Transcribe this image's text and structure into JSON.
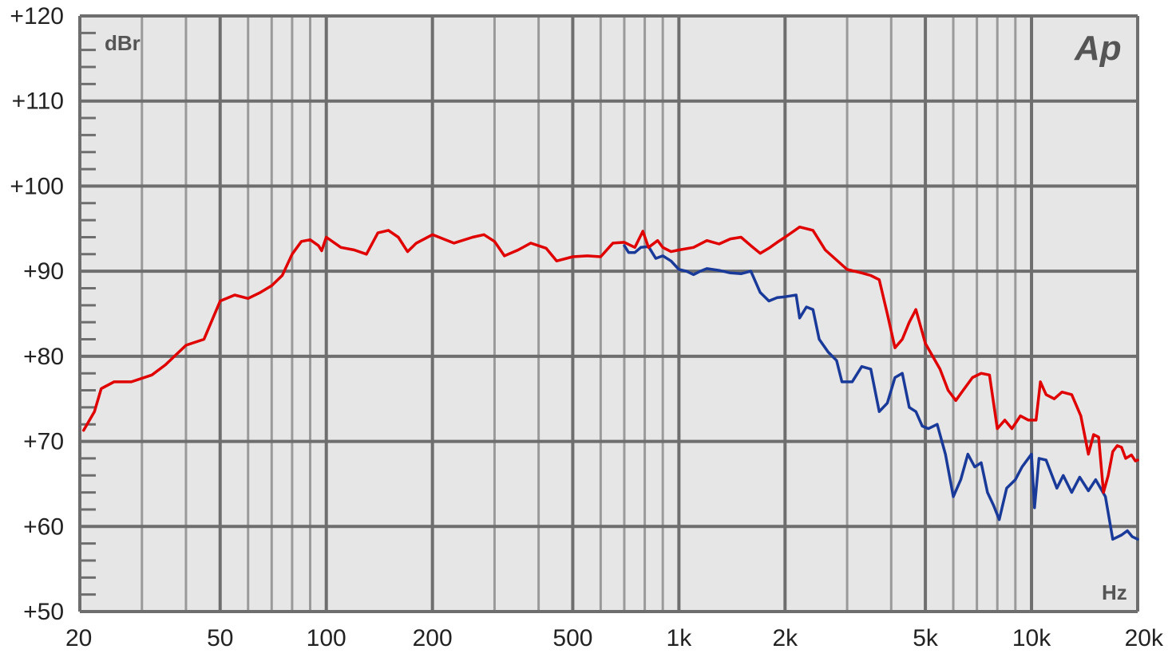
{
  "chart_data": {
    "type": "line",
    "x_scale": "log",
    "xlim": [
      20,
      20000
    ],
    "ylim": [
      50,
      120
    ],
    "grid": true,
    "ylabel": "dBr",
    "xlabel": "Hz",
    "logo_text": "Ap",
    "y_ticks": [
      {
        "value": 120,
        "label": "+120"
      },
      {
        "value": 110,
        "label": "+110"
      },
      {
        "value": 100,
        "label": "+100"
      },
      {
        "value": 90,
        "label": "+90"
      },
      {
        "value": 80,
        "label": "+80"
      },
      {
        "value": 70,
        "label": "+70"
      },
      {
        "value": 60,
        "label": "+60"
      },
      {
        "value": 50,
        "label": "+50"
      }
    ],
    "x_ticks": [
      {
        "value": 20,
        "label": "20"
      },
      {
        "value": 50,
        "label": "50"
      },
      {
        "value": 100,
        "label": "100"
      },
      {
        "value": 200,
        "label": "200"
      },
      {
        "value": 500,
        "label": "500"
      },
      {
        "value": 1000,
        "label": "1k"
      },
      {
        "value": 2000,
        "label": "2k"
      },
      {
        "value": 5000,
        "label": "5k"
      },
      {
        "value": 10000,
        "label": "10k"
      },
      {
        "value": 20000,
        "label": "20k"
      }
    ],
    "series": [
      {
        "color": "#e00000",
        "points": [
          [
            20.5,
            71.3
          ],
          [
            22,
            73.5
          ],
          [
            23,
            76.2
          ],
          [
            25,
            77.0
          ],
          [
            28,
            77.0
          ],
          [
            32,
            77.8
          ],
          [
            35,
            79.0
          ],
          [
            40,
            81.3
          ],
          [
            45,
            82.0
          ],
          [
            50,
            86.5
          ],
          [
            55,
            87.2
          ],
          [
            60,
            86.8
          ],
          [
            65,
            87.5
          ],
          [
            70,
            88.3
          ],
          [
            75,
            89.5
          ],
          [
            80,
            92.0
          ],
          [
            85,
            93.5
          ],
          [
            90,
            93.7
          ],
          [
            95,
            93.0
          ],
          [
            97,
            92.4
          ],
          [
            100,
            94.0
          ],
          [
            110,
            92.8
          ],
          [
            120,
            92.5
          ],
          [
            130,
            92.0
          ],
          [
            140,
            94.5
          ],
          [
            150,
            94.8
          ],
          [
            160,
            94.0
          ],
          [
            170,
            92.3
          ],
          [
            180,
            93.3
          ],
          [
            200,
            94.3
          ],
          [
            230,
            93.3
          ],
          [
            260,
            94.0
          ],
          [
            280,
            94.3
          ],
          [
            300,
            93.5
          ],
          [
            320,
            91.8
          ],
          [
            350,
            92.5
          ],
          [
            380,
            93.3
          ],
          [
            420,
            92.7
          ],
          [
            450,
            91.2
          ],
          [
            500,
            91.7
          ],
          [
            550,
            91.8
          ],
          [
            600,
            91.7
          ],
          [
            650,
            93.3
          ],
          [
            700,
            93.4
          ],
          [
            750,
            92.8
          ],
          [
            790,
            94.7
          ],
          [
            820,
            92.8
          ],
          [
            870,
            93.6
          ],
          [
            900,
            92.8
          ],
          [
            950,
            92.3
          ],
          [
            1000,
            92.5
          ],
          [
            1100,
            92.8
          ],
          [
            1200,
            93.6
          ],
          [
            1300,
            93.2
          ],
          [
            1400,
            93.8
          ],
          [
            1500,
            94.0
          ],
          [
            1600,
            93.0
          ],
          [
            1700,
            92.1
          ],
          [
            1800,
            92.7
          ],
          [
            1900,
            93.4
          ],
          [
            2000,
            94.0
          ],
          [
            2200,
            95.2
          ],
          [
            2400,
            94.8
          ],
          [
            2600,
            92.5
          ],
          [
            3000,
            90.2
          ],
          [
            3300,
            89.8
          ],
          [
            3500,
            89.5
          ],
          [
            3700,
            89.0
          ],
          [
            3900,
            85.0
          ],
          [
            4100,
            81.0
          ],
          [
            4300,
            82.0
          ],
          [
            4500,
            84.0
          ],
          [
            4700,
            85.5
          ],
          [
            5000,
            81.5
          ],
          [
            5500,
            78.5
          ],
          [
            5800,
            76.0
          ],
          [
            6100,
            74.8
          ],
          [
            6400,
            76.0
          ],
          [
            6800,
            77.5
          ],
          [
            7200,
            78.0
          ],
          [
            7600,
            77.8
          ],
          [
            8000,
            71.5
          ],
          [
            8400,
            72.5
          ],
          [
            8800,
            71.5
          ],
          [
            9300,
            73.0
          ],
          [
            9800,
            72.5
          ],
          [
            10300,
            72.5
          ],
          [
            10600,
            77.0
          ],
          [
            11000,
            75.5
          ],
          [
            11600,
            75.0
          ],
          [
            12200,
            75.8
          ],
          [
            13000,
            75.5
          ],
          [
            13800,
            73.0
          ],
          [
            14500,
            68.5
          ],
          [
            15000,
            70.8
          ],
          [
            15500,
            70.5
          ],
          [
            16000,
            64.0
          ],
          [
            16500,
            66.0
          ],
          [
            17000,
            68.8
          ],
          [
            17500,
            69.5
          ],
          [
            18000,
            69.3
          ],
          [
            18500,
            68.0
          ],
          [
            19200,
            68.4
          ],
          [
            19700,
            67.7
          ],
          [
            20000,
            67.8
          ]
        ]
      },
      {
        "color": "#1a3a9a",
        "points": [
          [
            700,
            93.0
          ],
          [
            720,
            92.2
          ],
          [
            750,
            92.2
          ],
          [
            780,
            92.8
          ],
          [
            820,
            92.9
          ],
          [
            860,
            91.5
          ],
          [
            900,
            91.8
          ],
          [
            950,
            91.2
          ],
          [
            1000,
            90.2
          ],
          [
            1050,
            90.0
          ],
          [
            1100,
            89.6
          ],
          [
            1150,
            90.0
          ],
          [
            1200,
            90.3
          ],
          [
            1300,
            90.1
          ],
          [
            1400,
            89.8
          ],
          [
            1500,
            89.7
          ],
          [
            1600,
            90.0
          ],
          [
            1700,
            87.5
          ],
          [
            1800,
            86.5
          ],
          [
            1900,
            86.9
          ],
          [
            2000,
            87.0
          ],
          [
            2150,
            87.2
          ],
          [
            2200,
            84.5
          ],
          [
            2300,
            85.8
          ],
          [
            2400,
            85.5
          ],
          [
            2500,
            82.0
          ],
          [
            2650,
            80.5
          ],
          [
            2800,
            79.5
          ],
          [
            2900,
            77.0
          ],
          [
            3100,
            77.0
          ],
          [
            3300,
            78.8
          ],
          [
            3500,
            78.5
          ],
          [
            3700,
            73.5
          ],
          [
            3900,
            74.5
          ],
          [
            4100,
            77.5
          ],
          [
            4300,
            78.0
          ],
          [
            4500,
            74.0
          ],
          [
            4700,
            73.5
          ],
          [
            4900,
            71.8
          ],
          [
            5100,
            71.5
          ],
          [
            5400,
            72.0
          ],
          [
            5700,
            68.5
          ],
          [
            6000,
            63.5
          ],
          [
            6300,
            65.5
          ],
          [
            6600,
            68.5
          ],
          [
            6900,
            67.0
          ],
          [
            7200,
            67.5
          ],
          [
            7500,
            64.0
          ],
          [
            7800,
            62.5
          ],
          [
            8100,
            60.8
          ],
          [
            8500,
            64.5
          ],
          [
            9000,
            65.5
          ],
          [
            9400,
            67.0
          ],
          [
            10000,
            68.5
          ],
          [
            10200,
            62.2
          ],
          [
            10500,
            68.0
          ],
          [
            11000,
            67.8
          ],
          [
            11800,
            64.5
          ],
          [
            12300,
            66.0
          ],
          [
            13000,
            64.0
          ],
          [
            13700,
            65.8
          ],
          [
            14500,
            64.2
          ],
          [
            15200,
            65.5
          ],
          [
            16200,
            63.5
          ],
          [
            17000,
            58.5
          ],
          [
            18000,
            59.0
          ],
          [
            18700,
            59.5
          ],
          [
            19300,
            58.8
          ],
          [
            20000,
            58.5
          ]
        ]
      }
    ]
  }
}
